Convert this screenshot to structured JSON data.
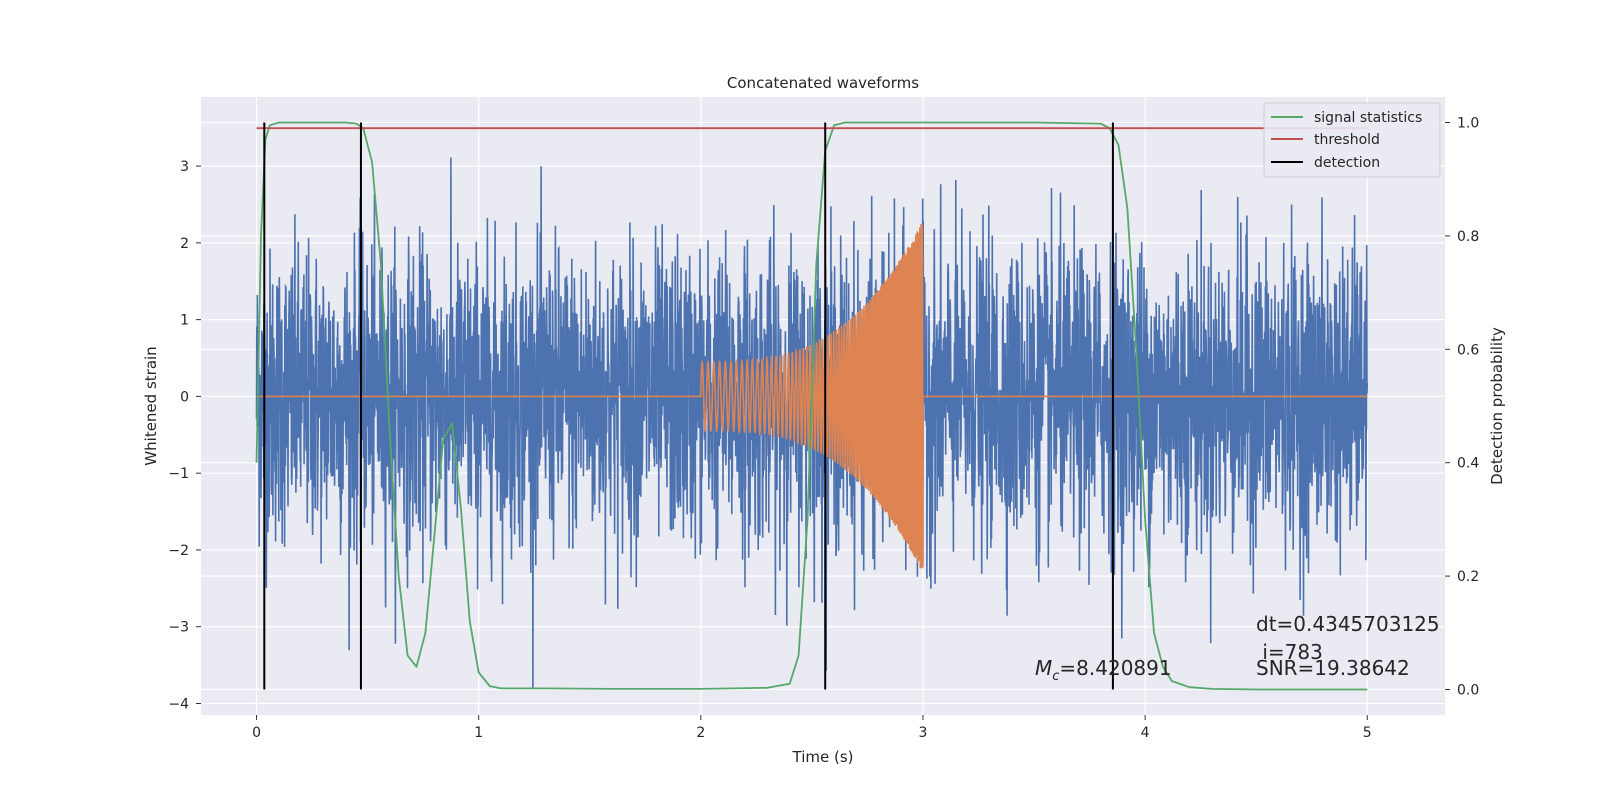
{
  "chart_data": {
    "type": "line",
    "title": "Concatenated waveforms",
    "xlabel": "Time (s)",
    "ylabel": "Whitened strain",
    "y2label": "Detection probability",
    "xlim": [
      -0.25,
      5.35
    ],
    "ylim": [
      -4.15,
      3.9
    ],
    "y2lim": [
      -0.045,
      1.045
    ],
    "xticks": [
      0,
      1,
      2,
      3,
      4,
      5
    ],
    "yticks": [
      -4,
      -3,
      -2,
      -1,
      0,
      1,
      2,
      3
    ],
    "y2ticks": [
      0.0,
      0.2,
      0.4,
      0.6,
      0.8,
      1.0
    ],
    "y2tick_labels": [
      "0.0",
      "0.2",
      "0.4",
      "0.6",
      "0.8",
      "1.0"
    ],
    "grid": true,
    "legend_position": "top-right",
    "colors": {
      "noise": "#4c72b0",
      "waveform": "#dd8452",
      "signal_statistics": "#55a868",
      "threshold": "#c44e52",
      "detection": "#000000",
      "plot_background": "#eaeaf2",
      "grid": "#ffffff"
    },
    "series": [
      {
        "name": "",
        "axis": "left",
        "description_type": "noise",
        "x_range": [
          0,
          5
        ],
        "amplitude_std": 0.95,
        "min": -3.8,
        "max": 3.5
      },
      {
        "name": "",
        "axis": "left",
        "description_type": "chirp",
        "x_range": [
          2.0,
          3.0
        ],
        "start_amplitude": 0.45,
        "end_amplitude": 2.3
      },
      {
        "name": "signal statistics",
        "axis": "right",
        "x": [
          0.0,
          0.02,
          0.04,
          0.06,
          0.1,
          0.2,
          0.3,
          0.4,
          0.45,
          0.48,
          0.52,
          0.56,
          0.6,
          0.64,
          0.68,
          0.72,
          0.76,
          0.8,
          0.84,
          0.88,
          0.92,
          0.96,
          1.0,
          1.05,
          1.1,
          1.3,
          1.6,
          2.0,
          2.3,
          2.4,
          2.44,
          2.48,
          2.52,
          2.56,
          2.6,
          2.65,
          2.7,
          3.0,
          3.5,
          3.8,
          3.84,
          3.88,
          3.92,
          3.96,
          4.0,
          4.04,
          4.08,
          4.12,
          4.2,
          4.3,
          4.5,
          5.0
        ],
        "y": [
          0.4,
          0.8,
          0.97,
          0.995,
          1.0,
          1.0,
          1.0,
          1.0,
          0.998,
          0.99,
          0.93,
          0.75,
          0.45,
          0.2,
          0.06,
          0.04,
          0.1,
          0.27,
          0.44,
          0.47,
          0.32,
          0.12,
          0.03,
          0.006,
          0.002,
          0.002,
          0.001,
          0.001,
          0.003,
          0.01,
          0.06,
          0.3,
          0.75,
          0.95,
          0.995,
          1.0,
          1.0,
          1.0,
          1.0,
          0.998,
          0.99,
          0.96,
          0.85,
          0.6,
          0.3,
          0.1,
          0.04,
          0.015,
          0.004,
          0.001,
          0.0,
          0.0
        ]
      },
      {
        "name": "threshold",
        "axis": "right",
        "x": [
          0,
          5
        ],
        "y": [
          0.99,
          0.99
        ]
      },
      {
        "name": "detection",
        "axis": "right",
        "x_positions": [
          0.035,
          0.47,
          2.56,
          3.855
        ],
        "y_range": [
          0.0,
          1.0
        ]
      }
    ],
    "annotations": {
      "mc_symbol": "M",
      "mc_sub": "c",
      "mc_value": "=8.420891",
      "dt": "dt=0.4345703125",
      "i": " i=783",
      "snr": "SNR=19.38642"
    }
  }
}
